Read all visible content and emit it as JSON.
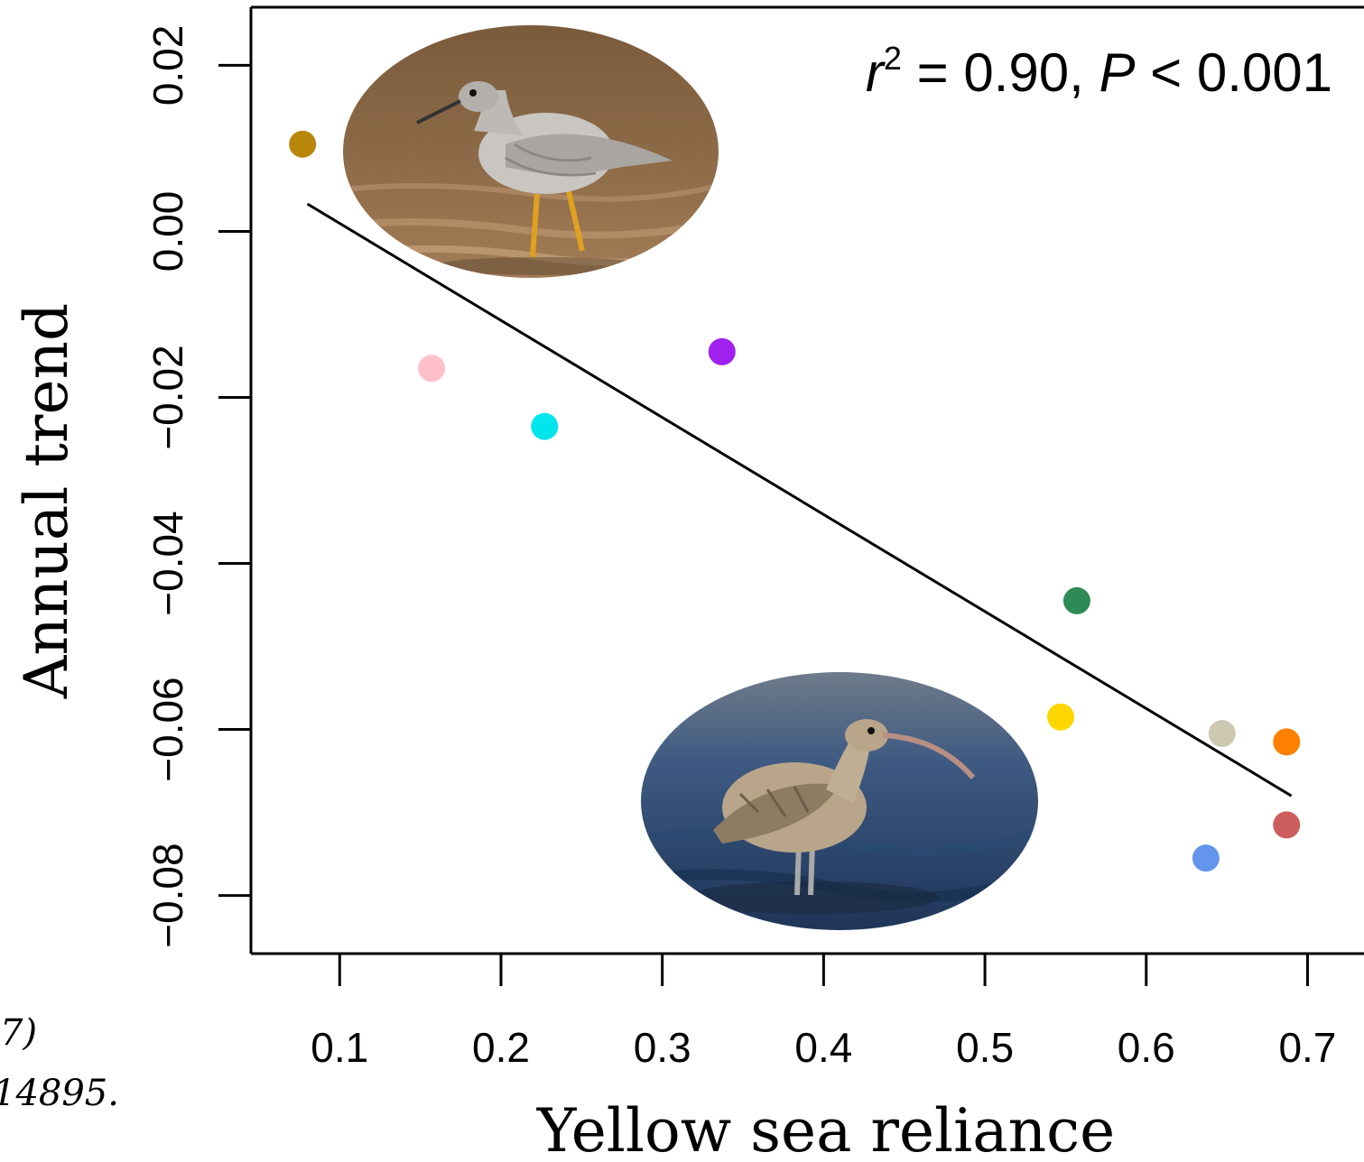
{
  "chart_data": {
    "type": "scatter",
    "title": "",
    "xlabel": "Yellow sea reliance",
    "ylabel": "Annual trend",
    "xlim": [
      0.045,
      0.735
    ],
    "ylim": [
      -0.087,
      0.027
    ],
    "xticks": [
      0.1,
      0.2,
      0.3,
      0.4,
      0.5,
      0.6,
      0.7
    ],
    "xtick_labels": [
      "0.1",
      "0.2",
      "0.3",
      "0.4",
      "0.5",
      "0.6",
      "0.7"
    ],
    "yticks": [
      0.02,
      0.0,
      -0.02,
      -0.04,
      -0.06,
      -0.08
    ],
    "ytick_labels": [
      "0.02",
      "0.00",
      "−0.02",
      "−0.04",
      "−0.06",
      "−0.08"
    ],
    "grid": false,
    "legend": "none",
    "annotation": {
      "r2_symbol": "r",
      "r2_superscript": "2",
      "r2_text": " = 0.90, ",
      "p_symbol": "P",
      "p_text": " < 0.001"
    },
    "points": [
      {
        "x": 0.077,
        "y": 0.0105,
        "color": "#B8860B"
      },
      {
        "x": 0.157,
        "y": -0.0165,
        "color": "#FFC0CB"
      },
      {
        "x": 0.227,
        "y": -0.0235,
        "color": "#00E5EE"
      },
      {
        "x": 0.337,
        "y": -0.0145,
        "color": "#A020F0"
      },
      {
        "x": 0.557,
        "y": -0.0445,
        "color": "#2E8B57"
      },
      {
        "x": 0.547,
        "y": -0.0585,
        "color": "#FFD700"
      },
      {
        "x": 0.647,
        "y": -0.0605,
        "color": "#CDC8B1"
      },
      {
        "x": 0.687,
        "y": -0.0615,
        "color": "#FF7F00"
      },
      {
        "x": 0.687,
        "y": -0.0715,
        "color": "#CD5C5C"
      },
      {
        "x": 0.637,
        "y": -0.0755,
        "color": "#6495ED"
      }
    ],
    "fit_line": {
      "x1": 0.08,
      "y1": 0.0033,
      "x2": 0.69,
      "y2": -0.068
    }
  },
  "citation": {
    "line1": "7)",
    "line2": "14895."
  },
  "images": {
    "top_bird": "grey-tailed-tattler-photo",
    "bottom_bird": "eastern-curlew-photo"
  }
}
